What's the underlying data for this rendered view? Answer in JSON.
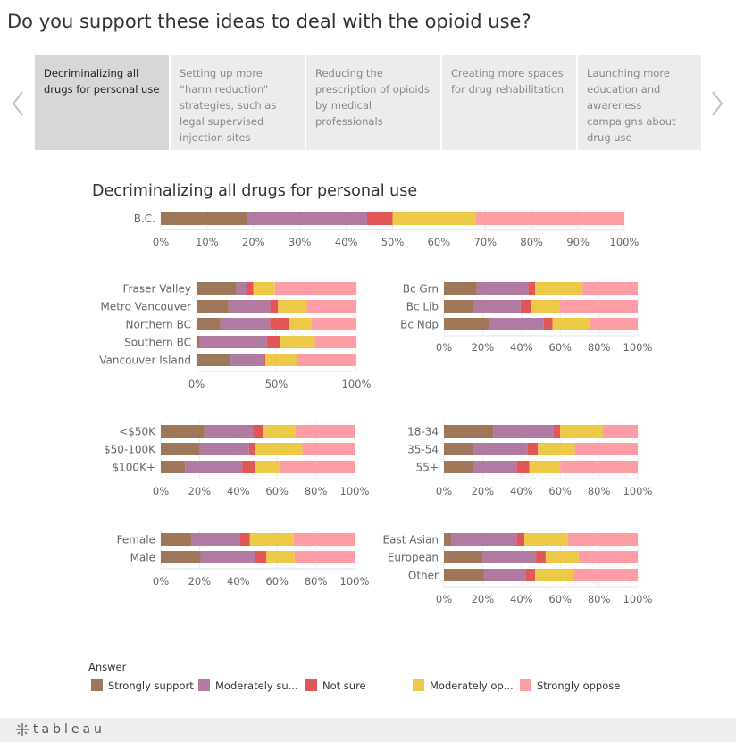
{
  "page": {
    "title": "Do you support these ideas to deal with the opioid use?"
  },
  "tabs": [
    "Decriminalizing all drugs for personal use",
    "Setting up more “harm reduction” strategies, such as legal supervised injection sites",
    "Reducing the prescription of opioids by medical professionals",
    "Creating more spaces for drug rehabilitation",
    "Launching more education and awareness campaigns about drug use"
  ],
  "legend": {
    "title": "Answer",
    "items": [
      "Strongly support",
      "Moderately su...",
      "Not sure",
      "Moderately op...",
      "Strongly oppose"
    ]
  },
  "footer": {
    "brand": "tableau"
  },
  "colors": {
    "strongly_support": "#9e7659",
    "moderately_support": "#b07aa1",
    "not_sure": "#e15759",
    "moderately_oppose": "#edc948",
    "strongly_oppose": "#ff9da7"
  },
  "chart_data": {
    "type": "bar",
    "stacked": "100%",
    "orientation": "horizontal",
    "title": "Decriminalizing all drugs for personal use",
    "series_order": [
      "Strongly support",
      "Moderately support",
      "Not sure",
      "Moderately oppose",
      "Strongly oppose"
    ],
    "panels": [
      {
        "id": "total",
        "categories": [
          "B.C."
        ],
        "values": [
          [
            18.5,
            26,
            5.5,
            18,
            32
          ]
        ],
        "ticks": [
          "0%",
          "10%",
          "20%",
          "30%",
          "40%",
          "50%",
          "60%",
          "70%",
          "80%",
          "90%",
          "100%"
        ]
      },
      {
        "id": "region",
        "categories": [
          "Fraser Valley",
          "Metro Vancouver",
          "Northern BC",
          "Southern BC",
          "Vancouver Island"
        ],
        "values": [
          [
            25,
            6,
            4.5,
            13.5,
            51
          ],
          [
            20,
            26,
            5,
            18,
            31
          ],
          [
            15,
            31,
            12,
            14,
            28
          ],
          [
            2,
            42,
            8,
            22,
            26
          ],
          [
            21,
            21,
            1,
            20,
            37
          ]
        ],
        "ticks": [
          "0%",
          "50%",
          "100%"
        ]
      },
      {
        "id": "party",
        "categories": [
          "Bc Grn",
          "Bc Lib",
          "Bc Ndp"
        ],
        "values": [
          [
            17,
            26.5,
            3.5,
            24.5,
            28.5
          ],
          [
            15.5,
            24,
            5.5,
            14.5,
            40.5
          ],
          [
            23.5,
            28,
            4.5,
            19.5,
            24.5
          ]
        ],
        "ticks": [
          "0%",
          "20%",
          "40%",
          "60%",
          "80%",
          "100%"
        ]
      },
      {
        "id": "income",
        "categories": [
          "<$50K",
          "$50-100K",
          "$100K+"
        ],
        "values": [
          [
            22.5,
            25,
            5.5,
            16.5,
            30.5
          ],
          [
            20,
            25.5,
            3,
            24.5,
            27
          ],
          [
            12.5,
            29.5,
            6.5,
            13,
            38.5
          ]
        ],
        "ticks": [
          "0%",
          "20%",
          "40%",
          "60%",
          "80%",
          "100%"
        ]
      },
      {
        "id": "age",
        "categories": [
          "18-34",
          "35-54",
          "55+"
        ],
        "values": [
          [
            25.5,
            31,
            3.5,
            22,
            18
          ],
          [
            15.5,
            27.5,
            5.5,
            19,
            32.5
          ],
          [
            15.5,
            22,
            6.5,
            16,
            40
          ]
        ],
        "ticks": [
          "0%",
          "20%",
          "40%",
          "60%",
          "80%",
          "100%"
        ]
      },
      {
        "id": "gender",
        "categories": [
          "Female",
          "Male"
        ],
        "values": [
          [
            16,
            25,
            5,
            22.5,
            31.5
          ],
          [
            20.5,
            28,
            6,
            14.5,
            31
          ]
        ],
        "ticks": [
          "0%",
          "20%",
          "40%",
          "60%",
          "80%",
          "100%"
        ]
      },
      {
        "id": "ethnicity",
        "categories": [
          "East Asian",
          "European",
          "Other"
        ],
        "values": [
          [
            4,
            33.5,
            4,
            22.5,
            36
          ],
          [
            20,
            27.5,
            5,
            17,
            30.5
          ],
          [
            20.5,
            21.5,
            5,
            19.5,
            33.5
          ]
        ],
        "ticks": [
          "0%",
          "20%",
          "40%",
          "60%",
          "80%",
          "100%"
        ]
      }
    ]
  }
}
